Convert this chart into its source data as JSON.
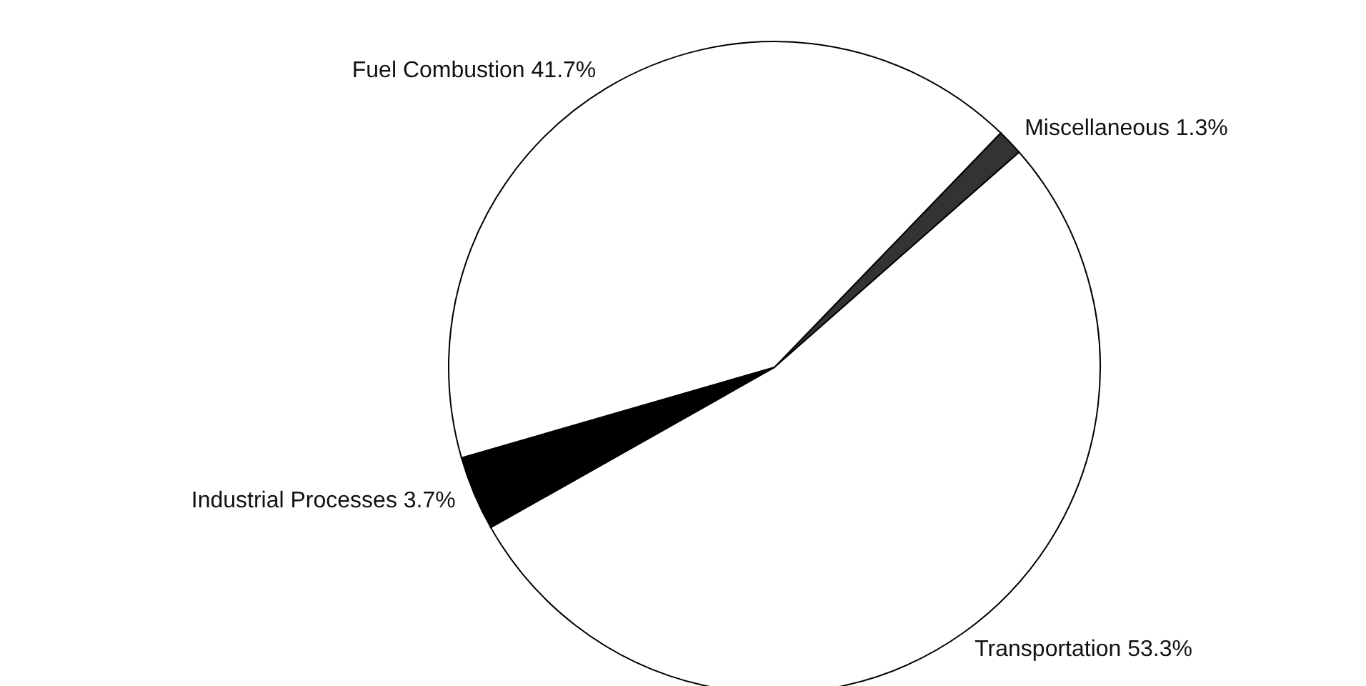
{
  "chart_data": {
    "type": "pie",
    "categories": [
      "Miscellaneous",
      "Transportation",
      "Industrial Processes",
      "Fuel Combustion"
    ],
    "values": [
      1.3,
      53.3,
      3.7,
      41.7
    ],
    "colors": [
      "#333333",
      "#ffffff",
      "#000000",
      "#ffffff"
    ],
    "value_labels": [
      "1.3%",
      "53.3%",
      "3.7%",
      "41.7%"
    ],
    "legend": false
  }
}
